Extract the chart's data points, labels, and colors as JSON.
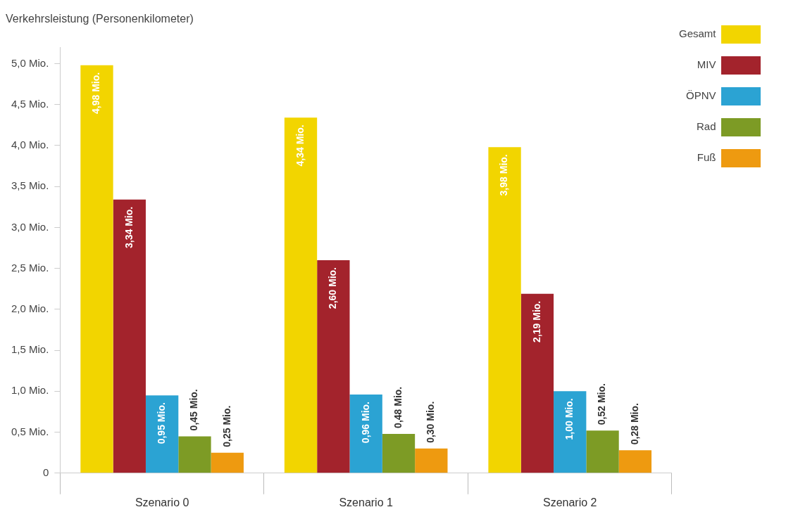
{
  "chart_data": {
    "type": "bar",
    "ylabel": "Verkehrsleistung (Personenkilometer)",
    "categories": [
      "Szenario 0",
      "Szenario 1",
      "Szenario 2"
    ],
    "series": [
      {
        "name": "Gesamt",
        "color": "#f2d500",
        "values": [
          4.98,
          4.34,
          3.98
        ],
        "value_labels": [
          "4,98 Mio.",
          "4,34 Mio.",
          "3,98 Mio."
        ]
      },
      {
        "name": "MIV",
        "color": "#a3232c",
        "values": [
          3.34,
          2.6,
          2.19
        ],
        "value_labels": [
          "3,34 Mio.",
          "2,60 Mio.",
          "2,19 Mio."
        ]
      },
      {
        "name": "ÖPNV",
        "color": "#2ba3d3",
        "values": [
          0.95,
          0.96,
          1.0
        ],
        "value_labels": [
          "0,95 Mio.",
          "0,96 Mio.",
          "1,00 Mio."
        ]
      },
      {
        "name": "Rad",
        "color": "#7d9b25",
        "values": [
          0.45,
          0.48,
          0.52
        ],
        "value_labels": [
          "0,45 Mio.",
          "0,48 Mio.",
          "0,52 Mio."
        ]
      },
      {
        "name": "Fuß",
        "color": "#ee9a10",
        "values": [
          0.25,
          0.3,
          0.28
        ],
        "value_labels": [
          "0,25 Mio.",
          "0,30 Mio.",
          "0,28 Mio."
        ]
      }
    ],
    "ylim": [
      0,
      5.2
    ],
    "yticks": [
      {
        "value": 0,
        "label": "0"
      },
      {
        "value": 0.5,
        "label": "0,5 Mio."
      },
      {
        "value": 1,
        "label": "1,0 Mio."
      },
      {
        "value": 1.5,
        "label": "1,5 Mio."
      },
      {
        "value": 2,
        "label": "2,0 Mio."
      },
      {
        "value": 2.5,
        "label": "2,5 Mio."
      },
      {
        "value": 3,
        "label": "3,0 Mio."
      },
      {
        "value": 3.5,
        "label": "3,5 Mio."
      },
      {
        "value": 4,
        "label": "4,0 Mio."
      },
      {
        "value": 4.5,
        "label": "4,5 Mio."
      },
      {
        "value": 5,
        "label": "5,0 Mio."
      }
    ],
    "grid": false,
    "legend": "top right"
  }
}
